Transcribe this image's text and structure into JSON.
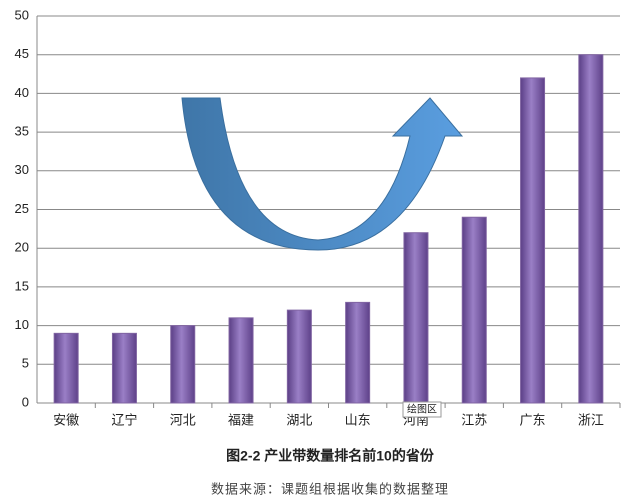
{
  "chart_data": {
    "type": "bar",
    "title": "图2-2 产业带数量排名前10的省份",
    "source": "数据来源：课题组根据收集的数据整理",
    "tooltip": "绘图区",
    "categories": [
      "安徽",
      "辽宁",
      "河北",
      "福建",
      "湖北",
      "山东",
      "河南",
      "江苏",
      "广东",
      "浙江"
    ],
    "values": [
      9,
      9,
      10,
      11,
      12,
      13,
      22,
      24,
      42,
      45
    ],
    "color": "#8064a2",
    "ylim": [
      0,
      50
    ],
    "yticks": [
      0,
      5,
      10,
      15,
      20,
      25,
      30,
      35,
      40,
      45,
      50
    ],
    "grid": true
  }
}
